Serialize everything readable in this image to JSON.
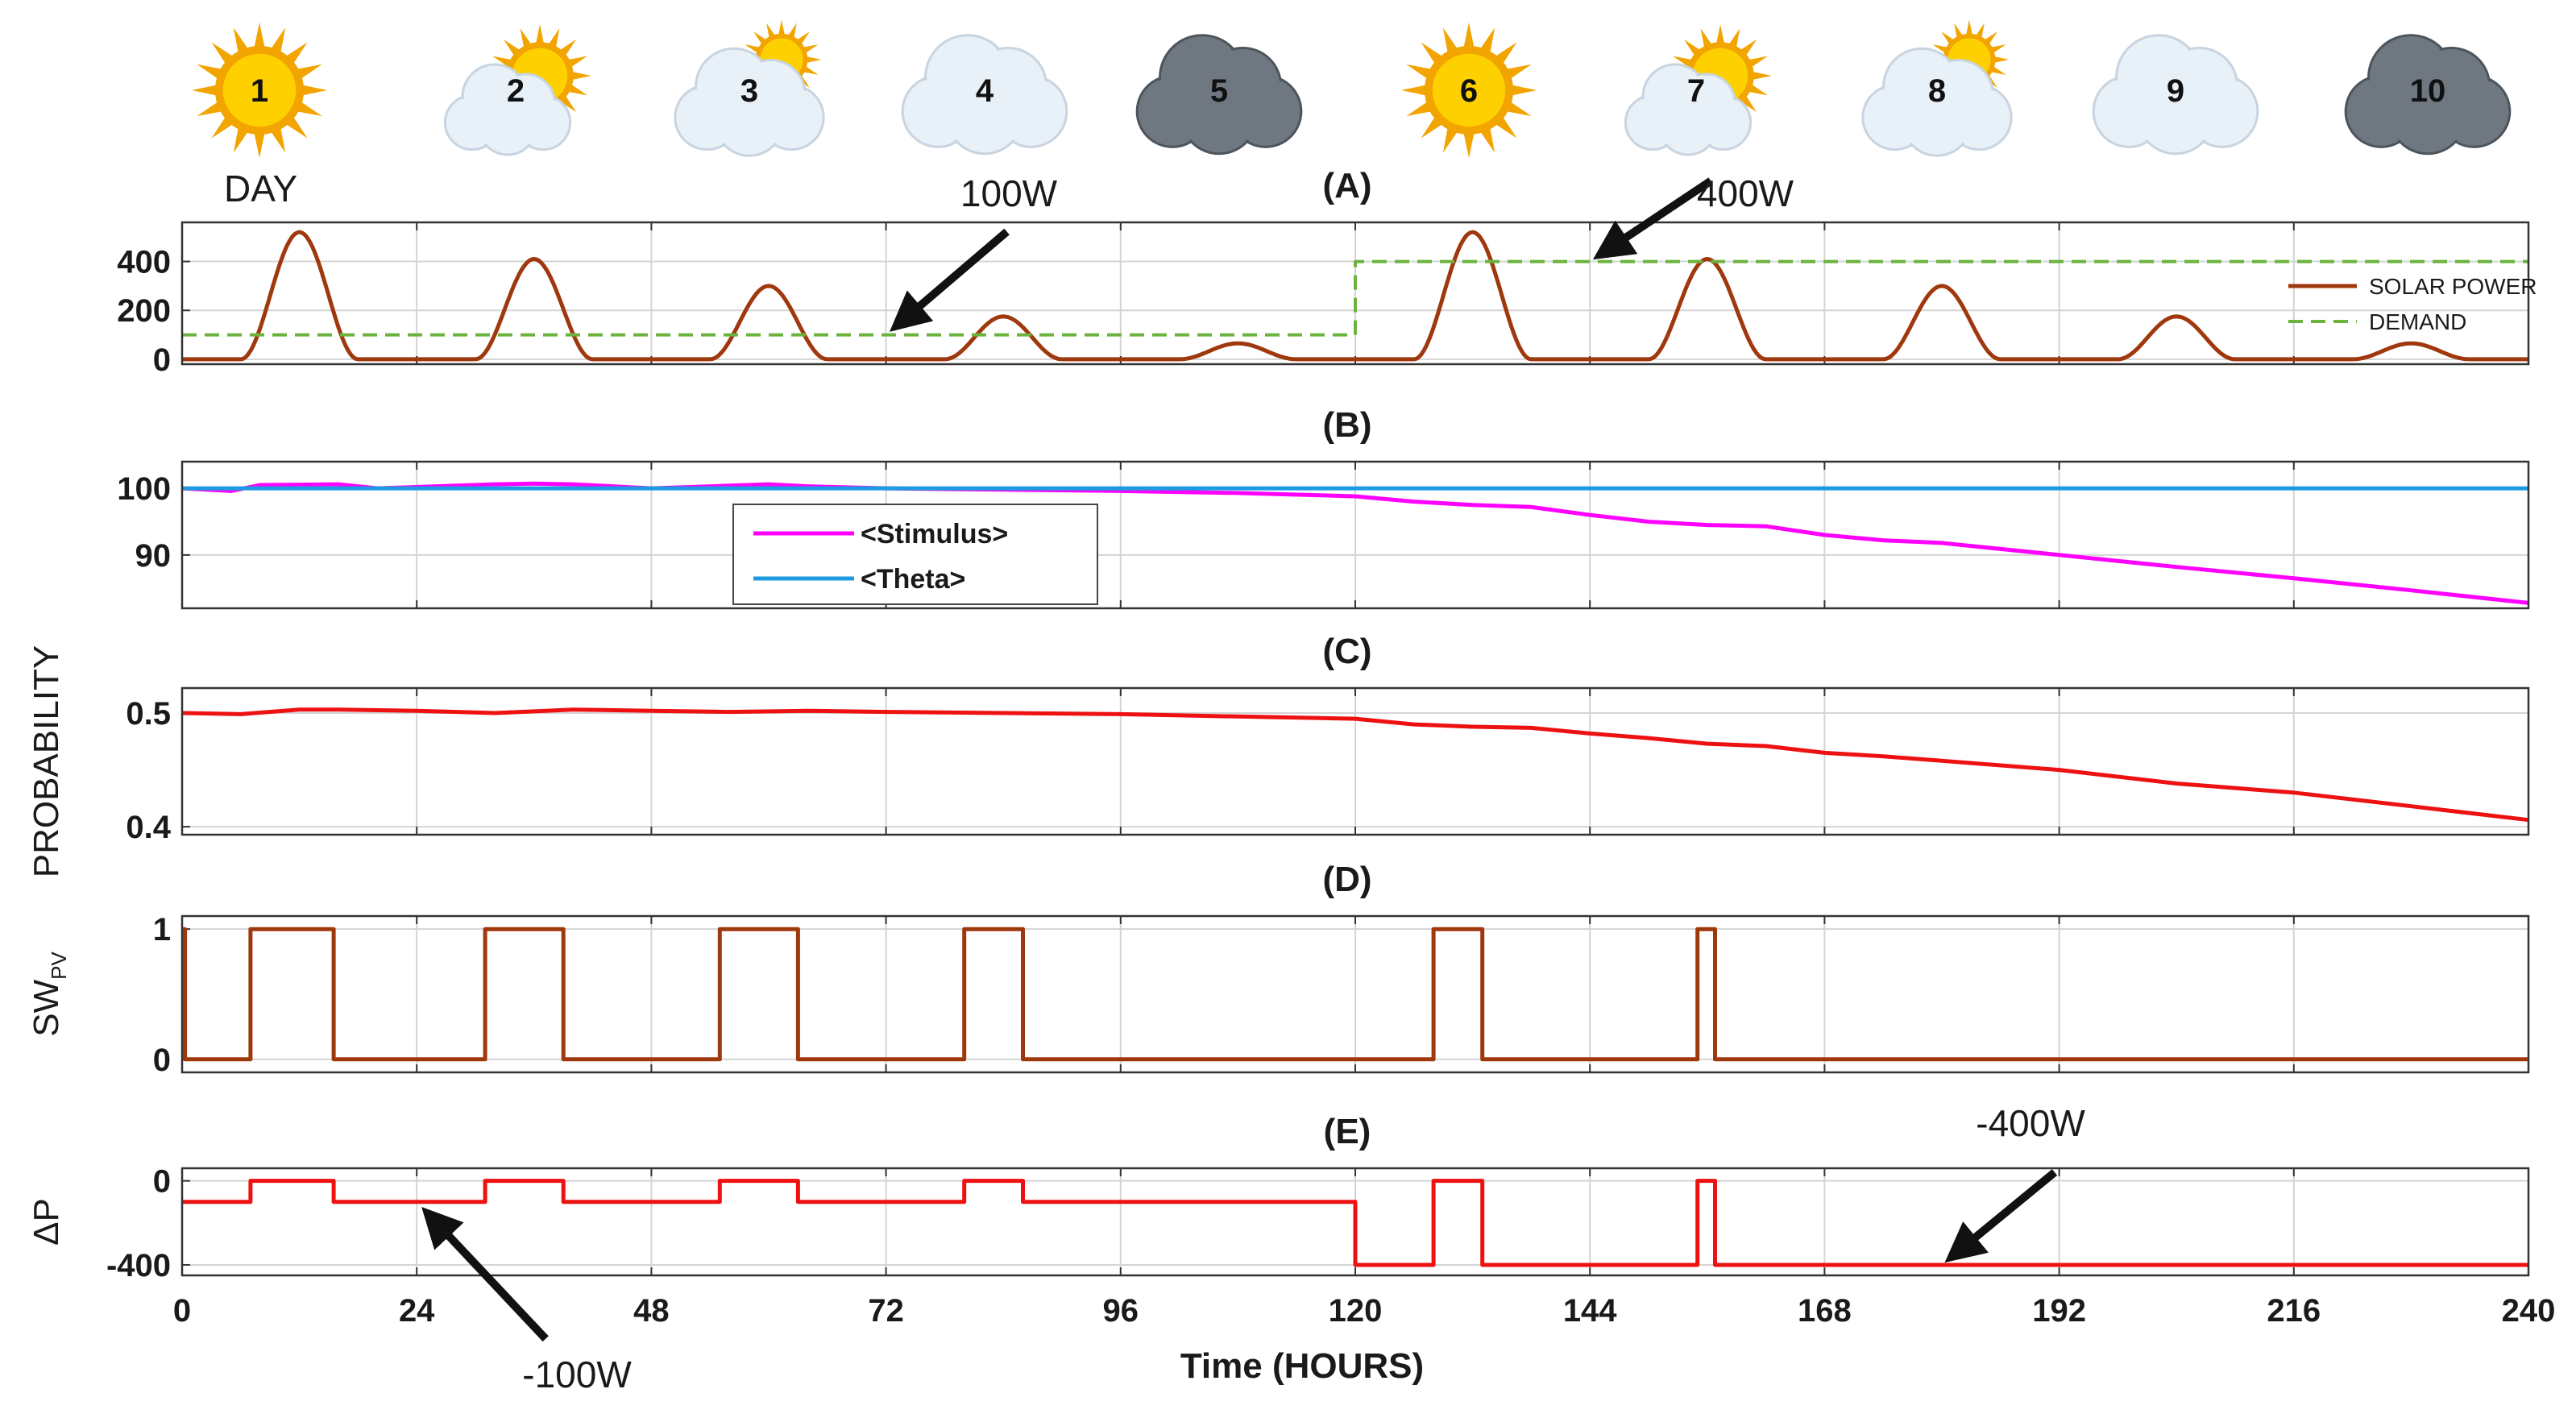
{
  "chart_data": {
    "type": "line",
    "x_axis": {
      "label": "Time (HOURS)",
      "range": [
        0,
        240
      ],
      "ticks": [
        "0",
        "24",
        "48",
        "72",
        "96",
        "120",
        "144",
        "168",
        "192",
        "216",
        "240"
      ]
    },
    "day_weather": [
      {
        "day": "1",
        "condition": "sunny"
      },
      {
        "day": "2",
        "condition": "mostly-sunny"
      },
      {
        "day": "3",
        "condition": "partly-cloudy"
      },
      {
        "day": "4",
        "condition": "cloudy"
      },
      {
        "day": "5",
        "condition": "overcast"
      },
      {
        "day": "6",
        "condition": "sunny"
      },
      {
        "day": "7",
        "condition": "mostly-sunny"
      },
      {
        "day": "8",
        "condition": "partly-cloudy"
      },
      {
        "day": "9",
        "condition": "cloudy"
      },
      {
        "day": "10",
        "condition": "overcast"
      }
    ],
    "day_label": "DAY",
    "panels": [
      {
        "id": "A",
        "title": "(A)",
        "ylabel": "",
        "yrange": [
          -20,
          560
        ],
        "yticks": [
          "0",
          "200",
          "400"
        ],
        "yticks_values": [
          0,
          200,
          400
        ],
        "series": [
          {
            "name": "SOLAR POWER",
            "color": "#a0380e",
            "style": "solid",
            "peaks": [
              {
                "center": 12,
                "peak": 520
              },
              {
                "center": 36,
                "peak": 410
              },
              {
                "center": 60,
                "peak": 300
              },
              {
                "center": 84,
                "peak": 175
              },
              {
                "center": 108,
                "peak": 65
              },
              {
                "center": 132,
                "peak": 520
              },
              {
                "center": 156,
                "peak": 410
              },
              {
                "center": 180,
                "peak": 300
              },
              {
                "center": 204,
                "peak": 175
              },
              {
                "center": 228,
                "peak": 65
              }
            ],
            "daylight_hours": [
              6,
              18
            ]
          },
          {
            "name": "DEMAND",
            "color": "#6cb33e",
            "style": "dashed",
            "steps": [
              {
                "from": 0,
                "to": 120,
                "value": 100
              },
              {
                "from": 120,
                "to": 240,
                "value": 400
              }
            ]
          }
        ],
        "annotations": [
          {
            "text": "100W",
            "points_to": [
              72,
              100
            ]
          },
          {
            "text": "400W",
            "points_to": [
              144,
              400
            ]
          }
        ]
      },
      {
        "id": "B",
        "title": "(B)",
        "ylabel": "",
        "yrange": [
          82,
          104
        ],
        "yticks": [
          "90",
          "100"
        ],
        "yticks_values": [
          90,
          100
        ],
        "series": [
          {
            "name": "<Stimulus>",
            "color": "#ff00ff",
            "x": [
              0,
              5,
              8,
              16,
              20,
              32,
              36,
              40,
              48,
              56,
              60,
              64,
              72,
              84,
              96,
              108,
              120,
              126,
              132,
              138,
              144,
              150,
              156,
              162,
              168,
              174,
              180,
              192,
              204,
              216,
              228,
              240
            ],
            "y": [
              100,
              99.6,
              100.5,
              100.6,
              100,
              100.6,
              100.7,
              100.6,
              100,
              100.4,
              100.6,
              100.3,
              100,
              99.8,
              99.6,
              99.3,
              98.8,
              98,
              97.5,
              97.2,
              96,
              95,
              94.5,
              94.3,
              93,
              92.2,
              91.8,
              90,
              88.2,
              86.5,
              84.7,
              82.8
            ]
          },
          {
            "name": "<Theta>",
            "color": "#1e9be0",
            "x": [
              0,
              240
            ],
            "y": [
              100,
              100
            ]
          }
        ]
      },
      {
        "id": "C",
        "title": "(C)",
        "ylabel": "PROBABILITY",
        "yrange": [
          0.393,
          0.522
        ],
        "yticks": [
          "0.4",
          "0.5"
        ],
        "yticks_values": [
          0.4,
          0.5
        ],
        "series": [
          {
            "name": "Probability",
            "color": "#ee1111",
            "x": [
              0,
              6,
              12,
              16,
              24,
              32,
              40,
              48,
              56,
              64,
              72,
              84,
              96,
              108,
              120,
              126,
              132,
              138,
              144,
              150,
              156,
              162,
              168,
              174,
              180,
              192,
              204,
              216,
              228,
              240
            ],
            "y": [
              0.5,
              0.499,
              0.503,
              0.503,
              0.502,
              0.5,
              0.503,
              0.502,
              0.501,
              0.502,
              0.501,
              0.5,
              0.499,
              0.497,
              0.495,
              0.49,
              0.488,
              0.487,
              0.482,
              0.478,
              0.473,
              0.471,
              0.465,
              0.462,
              0.458,
              0.45,
              0.438,
              0.43,
              0.418,
              0.406
            ]
          }
        ]
      },
      {
        "id": "D",
        "title": "(D)",
        "ylabel": "SW",
        "ylabel_sub": "PV",
        "yrange": [
          -0.1,
          1.1
        ],
        "yticks": [
          "0",
          "1"
        ],
        "yticks_values": [
          0,
          1
        ],
        "series": [
          {
            "name": "SW_PV",
            "color": "#a0380e",
            "on_intervals": [
              [
                7,
                15.5
              ],
              [
                31,
                39
              ],
              [
                55,
                63
              ],
              [
                80,
                86
              ],
              [
                128,
                133
              ],
              [
                155,
                156.8
              ]
            ]
          }
        ]
      },
      {
        "id": "E",
        "title": "(E)",
        "ylabel": "ΔP",
        "yrange": [
          -450,
          60
        ],
        "yticks": [
          "-400",
          "0"
        ],
        "yticks_values": [
          -400,
          0
        ],
        "series": [
          {
            "name": "ΔP",
            "color": "#ee1111",
            "steps": [
              {
                "from": 0,
                "to": 7,
                "value": -100
              },
              {
                "from": 7,
                "to": 15.5,
                "value": 0
              },
              {
                "from": 15.5,
                "to": 31,
                "value": -100
              },
              {
                "from": 31,
                "to": 39,
                "value": 0
              },
              {
                "from": 39,
                "to": 55,
                "value": -100
              },
              {
                "from": 55,
                "to": 63,
                "value": 0
              },
              {
                "from": 63,
                "to": 80,
                "value": -100
              },
              {
                "from": 80,
                "to": 86,
                "value": 0
              },
              {
                "from": 86,
                "to": 120,
                "value": -100
              },
              {
                "from": 120,
                "to": 128,
                "value": -400
              },
              {
                "from": 128,
                "to": 133,
                "value": 0
              },
              {
                "from": 133,
                "to": 155,
                "value": -400
              },
              {
                "from": 155,
                "to": 156.8,
                "value": 0
              },
              {
                "from": 156.8,
                "to": 240,
                "value": -400
              }
            ]
          }
        ],
        "annotations": [
          {
            "text": "-100W",
            "points_to": [
              24,
              -100
            ]
          },
          {
            "text": "-400W",
            "points_to": [
              180,
              -400
            ]
          }
        ]
      }
    ],
    "grid": true,
    "legend_A": {
      "placement": "right",
      "entries": [
        "SOLAR POWER",
        "DEMAND"
      ]
    },
    "legend_B": {
      "placement": "left-center",
      "entries": [
        "<Stimulus>",
        "<Theta>"
      ]
    }
  },
  "colors": {
    "axis": "#333333",
    "grid": "#d4d4d4",
    "sun_ray": "#f2a400",
    "sun_core": "#ffd000",
    "cloud_light": "#e8f0f8",
    "cloud_mid": "#c8d4e0",
    "cloud_dark": "#6f7880",
    "cloud_dark_edge": "#4c555c"
  }
}
